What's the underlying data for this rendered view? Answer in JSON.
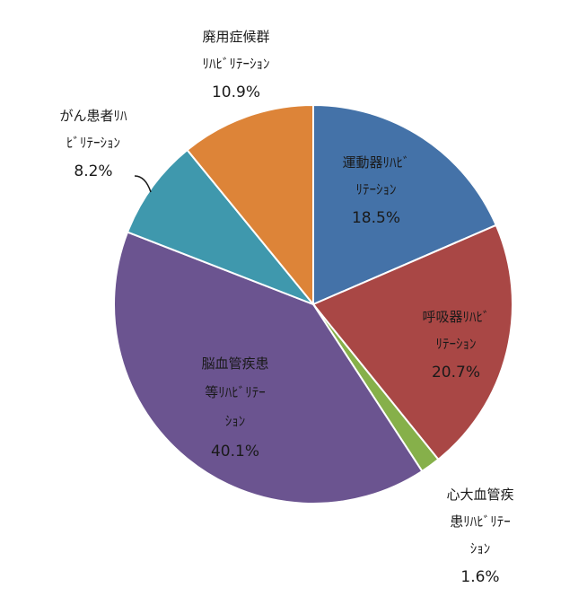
{
  "chart_data": {
    "type": "pie",
    "start_angle_deg": 0,
    "direction": "clockwise",
    "slices": [
      {
        "lines": [
          "運動器ﾘﾊﾋﾞ",
          "ﾘﾃｰｼｮﾝ"
        ],
        "pct_text": "18.5%",
        "value": 18.5,
        "color": "#4472a8"
      },
      {
        "lines": [
          "呼吸器ﾘﾊﾋﾞ",
          "ﾘﾃｰｼｮﾝ"
        ],
        "pct_text": "20.7%",
        "value": 20.7,
        "color": "#a94745"
      },
      {
        "lines": [
          "心大血管疾",
          "患ﾘﾊﾋﾞﾘﾃｰ",
          "ｼｮﾝ"
        ],
        "pct_text": "1.6%",
        "value": 1.6,
        "color": "#86b04a"
      },
      {
        "lines": [
          "脳血管疾患",
          "等ﾘﾊﾋﾞﾘﾃｰ",
          "ｼｮﾝ"
        ],
        "pct_text": "40.1%",
        "value": 40.1,
        "color": "#6b5490"
      },
      {
        "lines": [
          "がん患者ﾘﾊ",
          "ﾋﾞﾘﾃｰｼｮﾝ"
        ],
        "pct_text": "8.2%",
        "value": 8.2,
        "color": "#3f98ad"
      },
      {
        "lines": [
          "廃用症候群",
          "ﾘﾊﾋﾞﾘﾃｰｼｮﾝ"
        ],
        "pct_text": "10.9%",
        "value": 10.9,
        "color": "#dd8438"
      }
    ]
  }
}
